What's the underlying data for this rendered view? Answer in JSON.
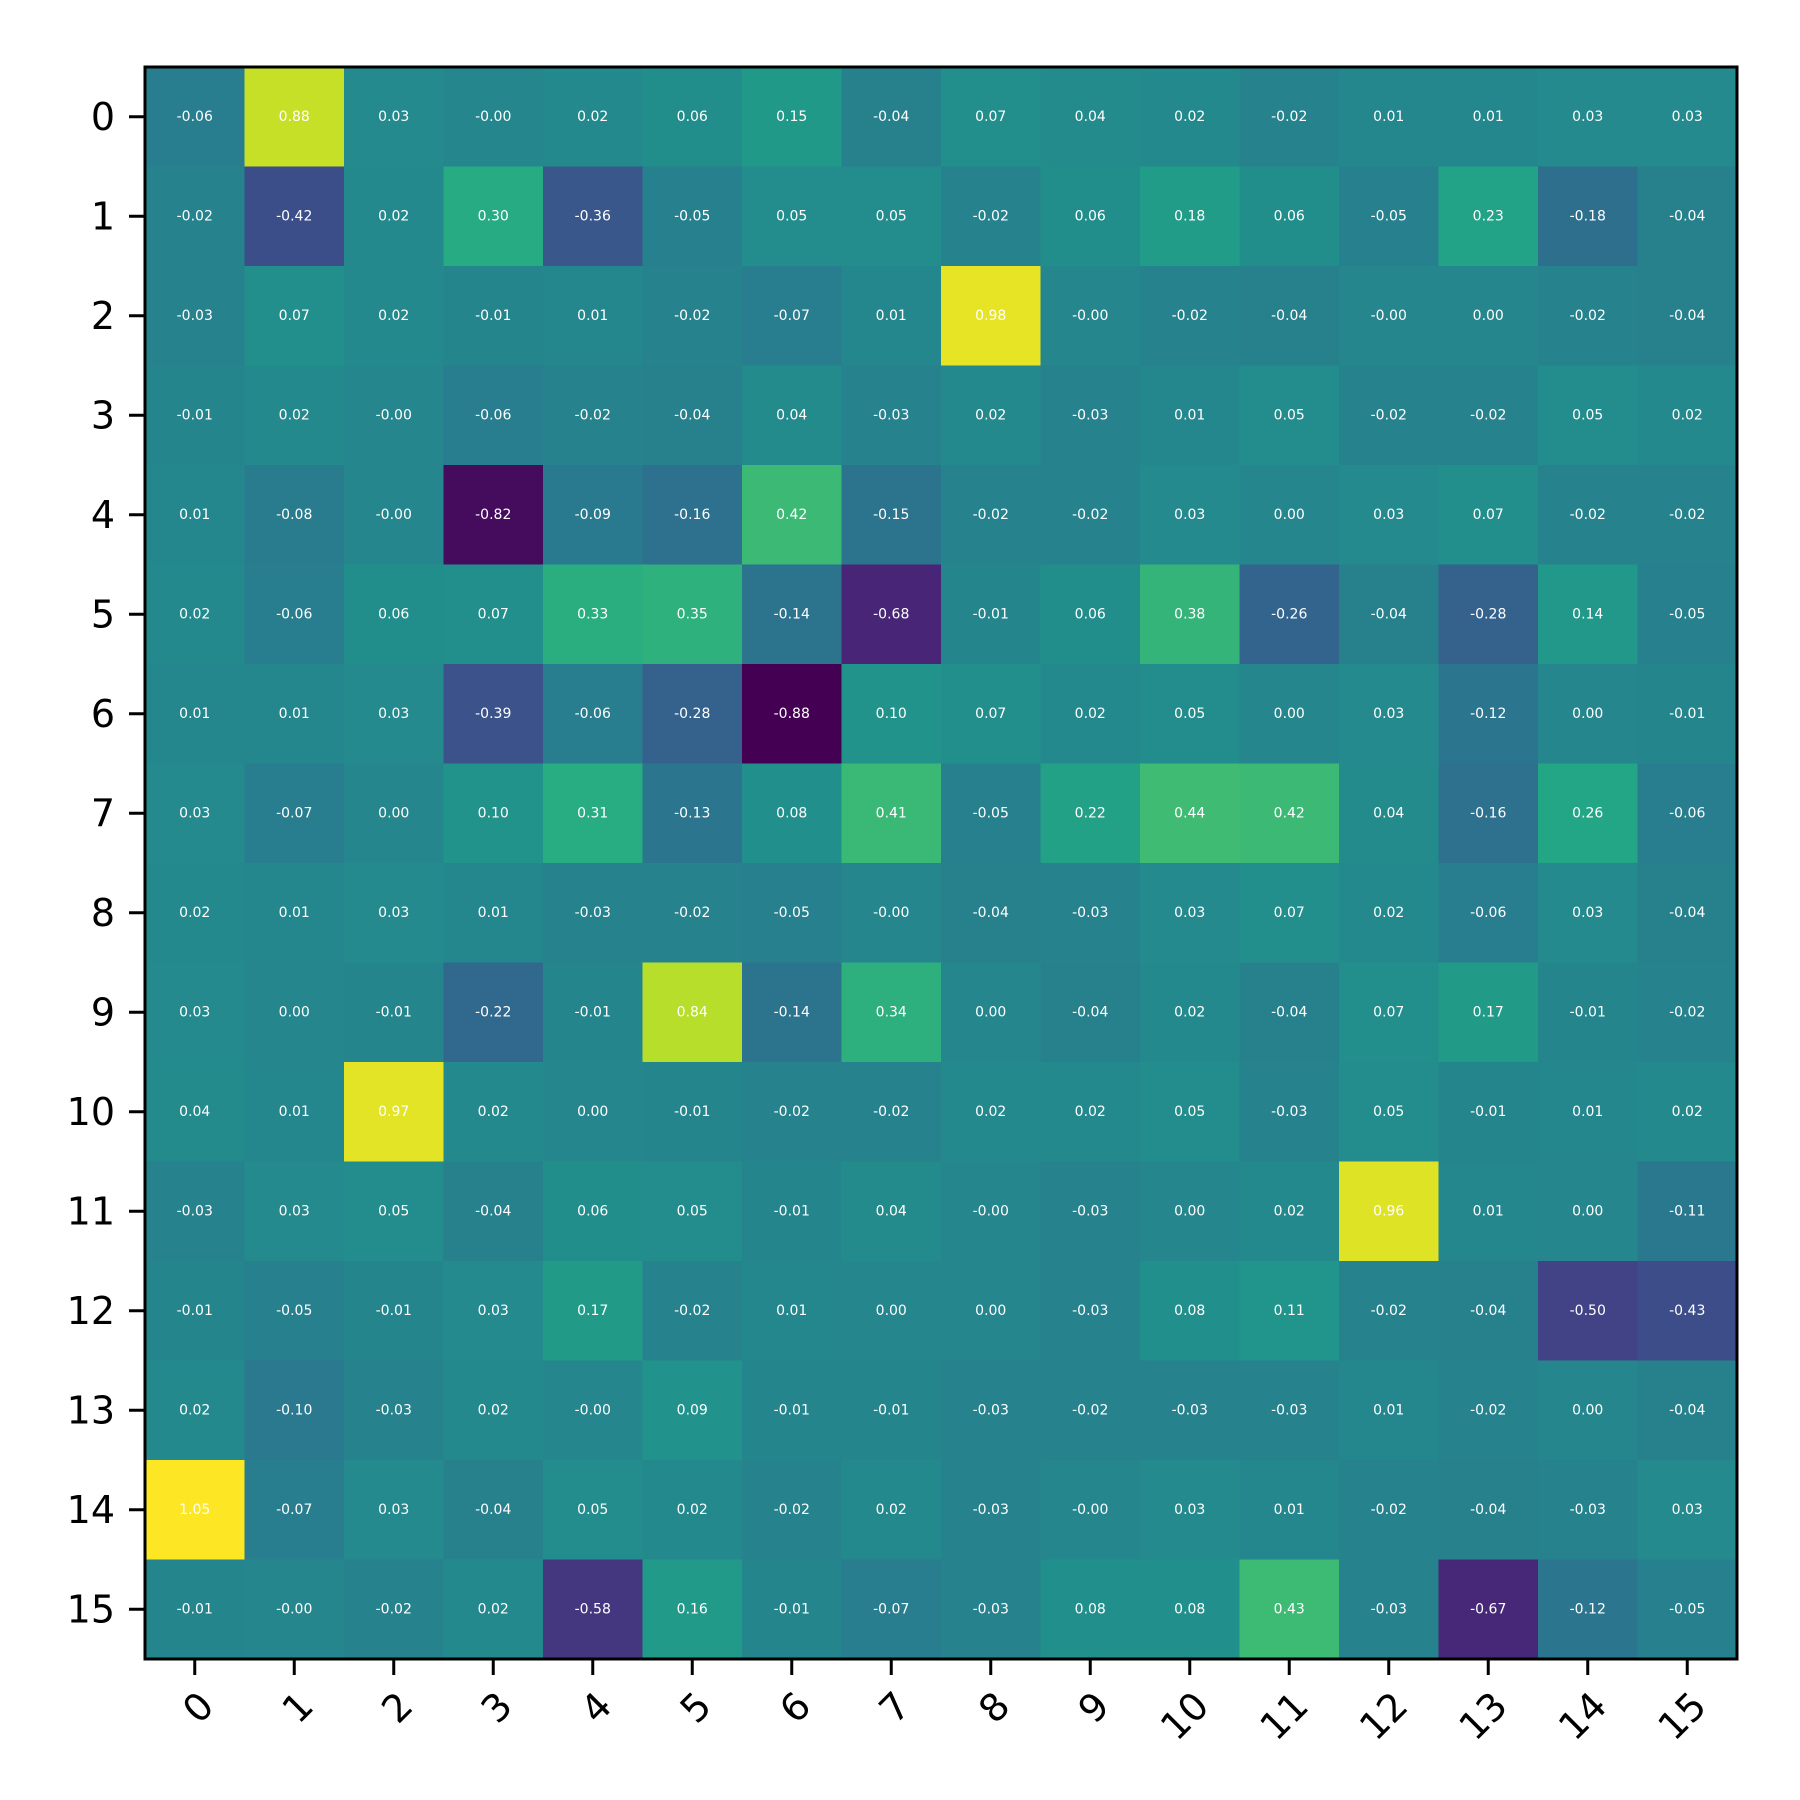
{
  "chart_data": {
    "type": "heatmap",
    "title": "",
    "xlabel": "",
    "ylabel": "",
    "colormap": "viridis",
    "vmin": -0.88,
    "vmax": 1.05,
    "x_tick_labels": [
      "0",
      "1",
      "2",
      "3",
      "4",
      "5",
      "6",
      "7",
      "8",
      "9",
      "10",
      "11",
      "12",
      "13",
      "14",
      "15"
    ],
    "y_tick_labels": [
      "0",
      "1",
      "2",
      "3",
      "4",
      "5",
      "6",
      "7",
      "8",
      "9",
      "10",
      "11",
      "12",
      "13",
      "14",
      "15"
    ],
    "values": [
      [
        -0.06,
        0.88,
        0.03,
        -0.0,
        0.02,
        0.06,
        0.15,
        -0.04,
        0.07,
        0.04,
        0.02,
        -0.02,
        0.01,
        0.01,
        0.03,
        0.03
      ],
      [
        -0.02,
        -0.42,
        0.02,
        0.3,
        -0.36,
        -0.05,
        0.05,
        0.05,
        -0.02,
        0.06,
        0.18,
        0.06,
        -0.05,
        0.23,
        -0.18,
        -0.04
      ],
      [
        -0.03,
        0.07,
        0.02,
        -0.01,
        0.01,
        -0.02,
        -0.07,
        0.01,
        0.98,
        -0.0,
        -0.02,
        -0.04,
        -0.0,
        0.0,
        -0.02,
        -0.04
      ],
      [
        -0.01,
        0.02,
        -0.0,
        -0.06,
        -0.02,
        -0.04,
        0.04,
        -0.03,
        0.02,
        -0.03,
        0.01,
        0.05,
        -0.02,
        -0.02,
        0.05,
        0.02
      ],
      [
        0.01,
        -0.08,
        -0.0,
        -0.82,
        -0.09,
        -0.16,
        0.42,
        -0.15,
        -0.02,
        -0.02,
        0.03,
        0.0,
        0.03,
        0.07,
        -0.02,
        -0.02
      ],
      [
        0.02,
        -0.06,
        0.06,
        0.07,
        0.33,
        0.35,
        -0.14,
        -0.68,
        -0.01,
        0.06,
        0.38,
        -0.26,
        -0.04,
        -0.28,
        0.14,
        -0.05
      ],
      [
        0.01,
        0.01,
        0.03,
        -0.39,
        -0.06,
        -0.28,
        -0.88,
        0.1,
        0.07,
        0.02,
        0.05,
        0.0,
        0.03,
        -0.12,
        0.0,
        -0.01
      ],
      [
        0.03,
        -0.07,
        0.0,
        0.1,
        0.31,
        -0.13,
        0.08,
        0.41,
        -0.05,
        0.22,
        0.44,
        0.42,
        0.04,
        -0.16,
        0.26,
        -0.06
      ],
      [
        0.02,
        0.01,
        0.03,
        0.01,
        -0.03,
        -0.02,
        -0.05,
        -0.0,
        -0.04,
        -0.03,
        0.03,
        0.07,
        0.02,
        -0.06,
        0.03,
        -0.04
      ],
      [
        0.03,
        0.0,
        -0.01,
        -0.22,
        -0.01,
        0.84,
        -0.14,
        0.34,
        0.0,
        -0.04,
        0.02,
        -0.04,
        0.07,
        0.17,
        -0.01,
        -0.02
      ],
      [
        0.04,
        0.01,
        0.97,
        0.02,
        0.0,
        -0.01,
        -0.02,
        -0.02,
        0.02,
        0.02,
        0.05,
        -0.03,
        0.05,
        -0.01,
        0.01,
        0.02
      ],
      [
        -0.03,
        0.03,
        0.05,
        -0.04,
        0.06,
        0.05,
        -0.01,
        0.04,
        -0.0,
        -0.03,
        0.0,
        0.02,
        0.96,
        0.01,
        0.0,
        -0.11
      ],
      [
        -0.01,
        -0.05,
        -0.01,
        0.03,
        0.17,
        -0.02,
        0.01,
        0.0,
        0.0,
        -0.03,
        0.08,
        0.11,
        -0.02,
        -0.04,
        -0.5,
        -0.43
      ],
      [
        0.02,
        -0.1,
        -0.03,
        0.02,
        -0.0,
        0.09,
        -0.01,
        -0.01,
        -0.03,
        -0.02,
        -0.03,
        -0.03,
        0.01,
        -0.02,
        0.0,
        -0.04
      ],
      [
        1.05,
        -0.07,
        0.03,
        -0.04,
        0.05,
        0.02,
        -0.02,
        0.02,
        -0.03,
        -0.0,
        0.03,
        0.01,
        -0.02,
        -0.04,
        -0.03,
        0.03
      ],
      [
        -0.01,
        -0.0,
        -0.02,
        0.02,
        -0.58,
        0.16,
        -0.01,
        -0.07,
        -0.03,
        0.08,
        0.08,
        0.43,
        -0.03,
        -0.67,
        -0.12,
        -0.05
      ]
    ]
  }
}
